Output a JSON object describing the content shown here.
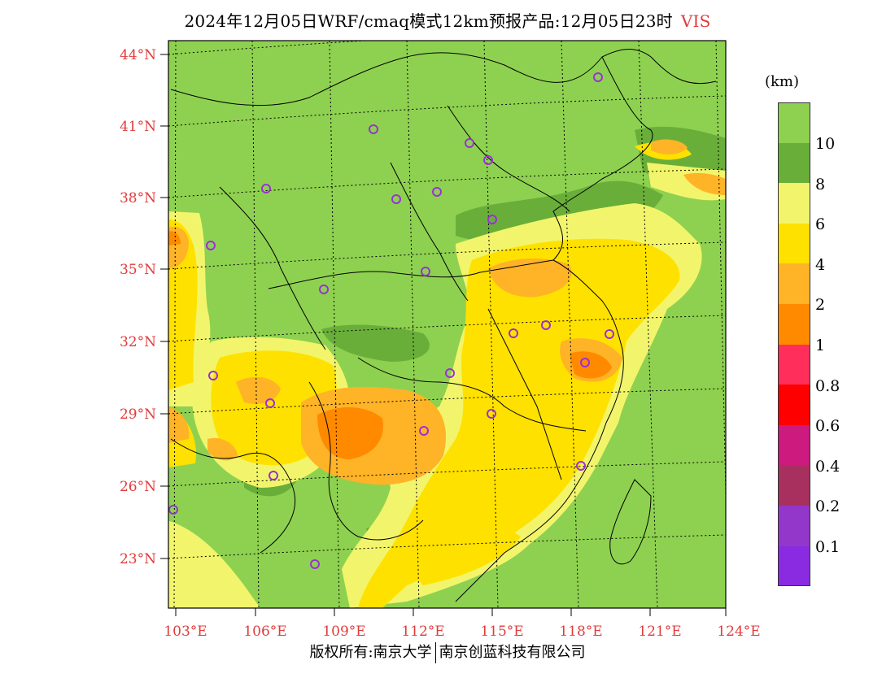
{
  "title": {
    "main": "2024年12月05日WRF/cmaq模式12km预报产品:12月05日23时",
    "variable": "VIS"
  },
  "legend": {
    "unit": "(km)",
    "colors": [
      "#8ed150",
      "#6aae3a",
      "#f2f56b",
      "#ffe100",
      "#ffb327",
      "#ff8a00",
      "#ff2e5b",
      "#ff0000",
      "#cc1a7e",
      "#a8305e",
      "#9237c9",
      "#8a2be2"
    ],
    "labels": [
      "10",
      "8",
      "6",
      "4",
      "2",
      "1",
      "0.8",
      "0.6",
      "0.4",
      "0.2",
      "0.1"
    ]
  },
  "axes": {
    "lat_labels": [
      "44°N",
      "41°N",
      "38°N",
      "35°N",
      "32°N",
      "29°N",
      "26°N",
      "23°N"
    ],
    "lon_labels": [
      "103°E",
      "106°E",
      "109°E",
      "112°E",
      "115°E",
      "118°E",
      "121°E",
      "124°E"
    ]
  },
  "footer": {
    "left": "版权所有:南京大学",
    "right": "南京创蓝科技有限公司"
  },
  "city_markers_count": 24
}
